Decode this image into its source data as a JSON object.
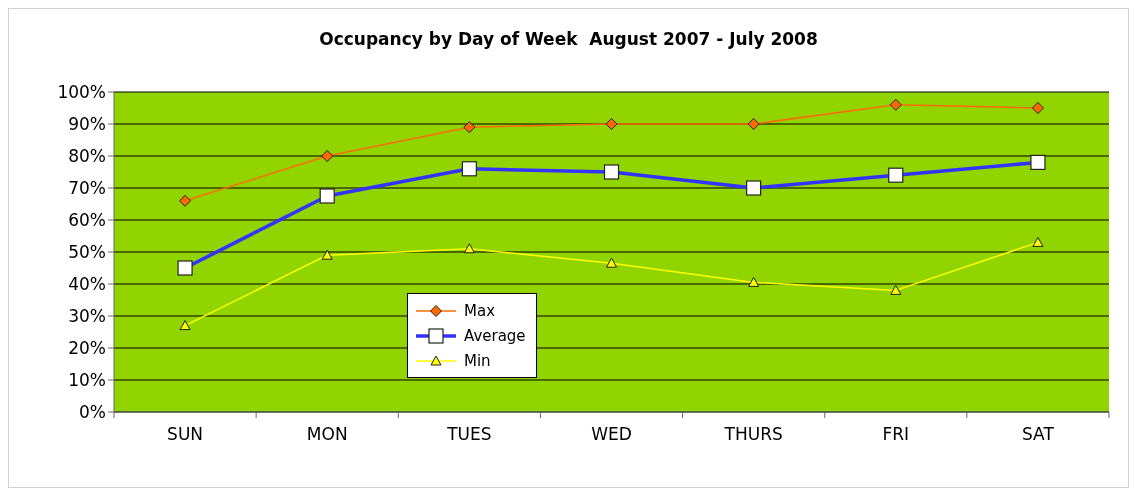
{
  "chart_data": {
    "type": "line",
    "title": "Occupancy by Day of Week  August 2007 - July 2008",
    "categories": [
      "SUN",
      "MON",
      "TUES",
      "WED",
      "THURS",
      "FRI",
      "SAT"
    ],
    "series": [
      {
        "name": "Max",
        "color": "#ff6a00",
        "marker": "diamond",
        "values": [
          66,
          80,
          89,
          90,
          90,
          96,
          95
        ]
      },
      {
        "name": "Average",
        "color": "#3333ff",
        "marker": "square",
        "values": [
          45,
          67.5,
          76,
          75,
          70,
          74,
          78
        ]
      },
      {
        "name": "Min",
        "color": "#ffff00",
        "marker": "triangle",
        "values": [
          27,
          49,
          51,
          46.5,
          40.5,
          38,
          53
        ]
      }
    ],
    "ylim": [
      0,
      100
    ],
    "yticks": [
      {
        "value": 0,
        "label": "0%"
      },
      {
        "value": 10,
        "label": "10%"
      },
      {
        "value": 20,
        "label": "20%"
      },
      {
        "value": 30,
        "label": "30%"
      },
      {
        "value": 40,
        "label": "40%"
      },
      {
        "value": 50,
        "label": "50%"
      },
      {
        "value": 60,
        "label": "60%"
      },
      {
        "value": 70,
        "label": "70%"
      },
      {
        "value": 80,
        "label": "80%"
      },
      {
        "value": 90,
        "label": "90%"
      },
      {
        "value": 100,
        "label": "100%"
      }
    ],
    "grid": "y",
    "legend": "bottom left"
  }
}
